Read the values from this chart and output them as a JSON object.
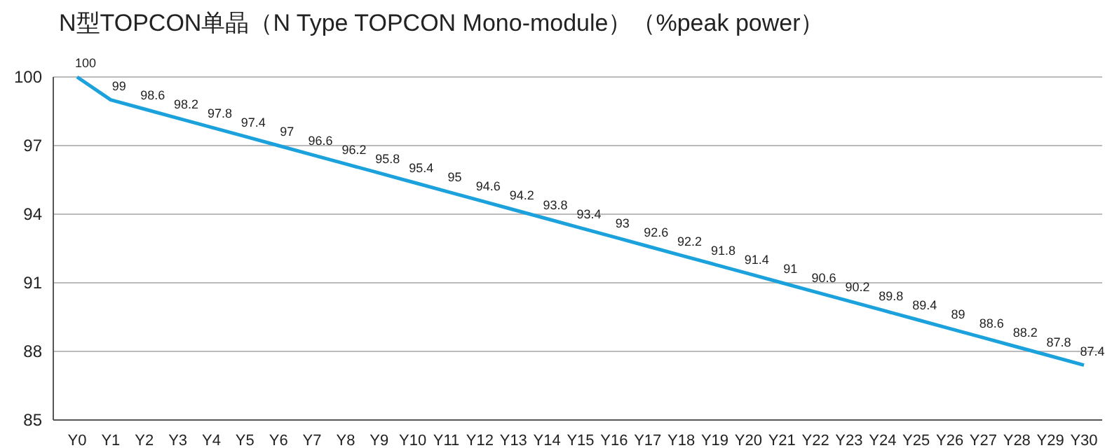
{
  "chart_data": {
    "type": "line",
    "title": "N型TOPCON单晶（N Type TOPCON Mono-module）（%peak power）",
    "categories": [
      "Y0",
      "Y1",
      "Y2",
      "Y3",
      "Y4",
      "Y5",
      "Y6",
      "Y7",
      "Y8",
      "Y9",
      "Y10",
      "Y11",
      "Y12",
      "Y13",
      "Y14",
      "Y15",
      "Y16",
      "Y17",
      "Y18",
      "Y19",
      "Y20",
      "Y21",
      "Y22",
      "Y23",
      "Y24",
      "Y25",
      "Y26",
      "Y27",
      "Y28",
      "Y29",
      "Y30"
    ],
    "series": [
      {
        "color": "#1ba1db",
        "values": [
          100,
          99,
          98.6,
          98.2,
          97.8,
          97.4,
          97,
          96.6,
          96.2,
          95.8,
          95.4,
          95,
          94.6,
          94.2,
          93.8,
          93.4,
          93,
          92.6,
          92.2,
          91.8,
          91.4,
          91,
          90.6,
          90.2,
          89.8,
          89.4,
          89,
          88.6,
          88.2,
          87.8,
          87.4
        ]
      }
    ],
    "ylim": [
      85,
      100
    ],
    "yticks": [
      85,
      88,
      91,
      94,
      97,
      100
    ],
    "grid": "y",
    "data_labels": true,
    "marker": "none",
    "line_style": "solid"
  }
}
